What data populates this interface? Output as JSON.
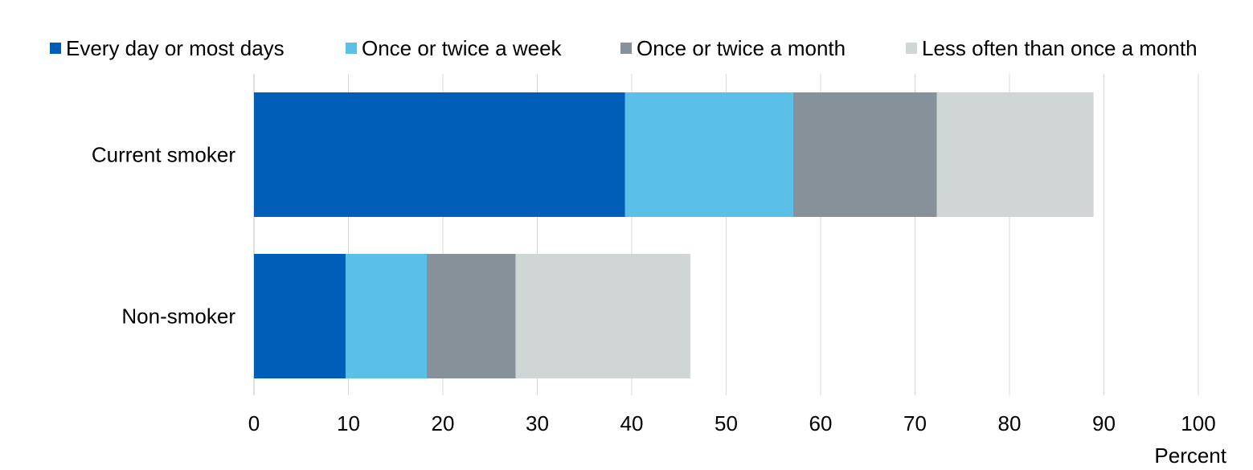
{
  "chart_data": {
    "type": "bar",
    "orientation": "horizontal",
    "stacked": true,
    "categories": [
      "Current smoker",
      "Non-smoker"
    ],
    "series": [
      {
        "name": "Every day or most days",
        "color": "#005EB8",
        "values": [
          39.3,
          9.7
        ]
      },
      {
        "name": "Once or twice a week",
        "color": "#5BC0E8",
        "values": [
          17.8,
          8.6
        ]
      },
      {
        "name": "Once or twice a month",
        "color": "#86919A",
        "values": [
          15.2,
          9.4
        ]
      },
      {
        "name": "Less often than once a month",
        "color": "#D0D5D6",
        "values": [
          16.6,
          18.5
        ]
      }
    ],
    "x_ticks": [
      "0",
      "10",
      "20",
      "30",
      "40",
      "50",
      "60",
      "70",
      "80",
      "90",
      "100"
    ],
    "xlim": [
      0,
      100
    ],
    "xlabel": "Percent",
    "ylabel": "",
    "title": "",
    "grid": true,
    "legend_position": "top"
  }
}
